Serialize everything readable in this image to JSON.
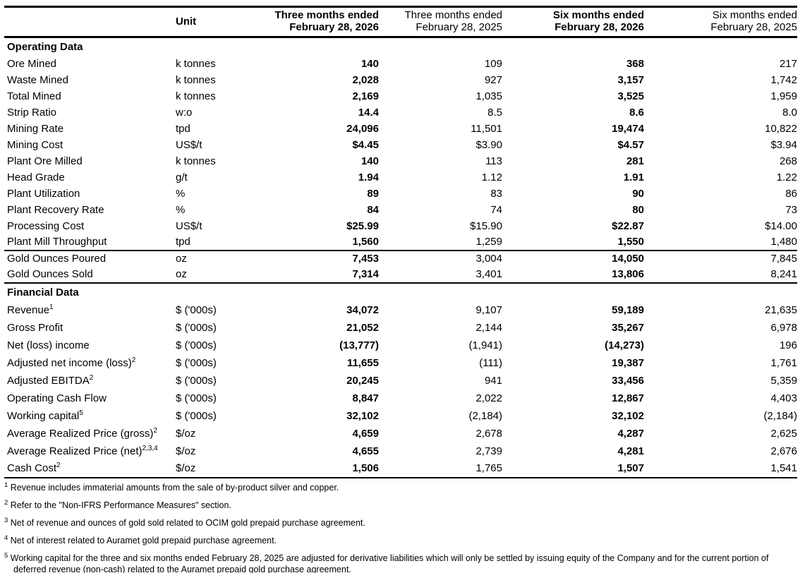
{
  "table": {
    "header": {
      "unit_label": "Unit",
      "columns": [
        {
          "line1": "Three months ended",
          "line2": "February 28, 2026"
        },
        {
          "line1": "Three months ended",
          "line2": "February 28, 2025"
        },
        {
          "line1": "Six months ended",
          "line2": "February 28, 2026"
        },
        {
          "line1": "Six months ended",
          "line2": "February 28, 2025"
        }
      ]
    },
    "sections": [
      {
        "title": "Operating Data",
        "groups": [
          {
            "rows": [
              {
                "label": "Ore Mined",
                "sup": "",
                "unit": "k tonnes",
                "values": [
                  "140",
                  "109",
                  "368",
                  "217"
                ]
              },
              {
                "label": "Waste Mined",
                "sup": "",
                "unit": "k tonnes",
                "values": [
                  "2,028",
                  "927",
                  "3,157",
                  "1,742"
                ]
              },
              {
                "label": "Total Mined",
                "sup": "",
                "unit": "k tonnes",
                "values": [
                  "2,169",
                  "1,035",
                  "3,525",
                  "1,959"
                ]
              },
              {
                "label": "Strip Ratio",
                "sup": "",
                "unit": "w:o",
                "values": [
                  "14.4",
                  "8.5",
                  "8.6",
                  "8.0"
                ]
              },
              {
                "label": "Mining Rate",
                "sup": "",
                "unit": "tpd",
                "values": [
                  "24,096",
                  "11,501",
                  "19,474",
                  "10,822"
                ]
              },
              {
                "label": "Mining Cost",
                "sup": "",
                "unit": "US$/t",
                "values": [
                  "$4.45",
                  "$3.90",
                  "$4.57",
                  "$3.94"
                ]
              },
              {
                "label": "Plant Ore Milled",
                "sup": "",
                "unit": "k tonnes",
                "values": [
                  "140",
                  "113",
                  "281",
                  "268"
                ]
              },
              {
                "label": "Head Grade",
                "sup": "",
                "unit": "g/t",
                "values": [
                  "1.94",
                  "1.12",
                  "1.91",
                  "1.22"
                ]
              },
              {
                "label": "Plant Utilization",
                "sup": "",
                "unit": "%",
                "values": [
                  "89",
                  "83",
                  "90",
                  "86"
                ]
              },
              {
                "label": "Plant Recovery Rate",
                "sup": "",
                "unit": "%",
                "values": [
                  "84",
                  "74",
                  "80",
                  "73"
                ]
              },
              {
                "label": "Processing Cost",
                "sup": "",
                "unit": "US$/t",
                "values": [
                  "$25.99",
                  "$15.90",
                  "$22.87",
                  "$14.00"
                ]
              },
              {
                "label": "Plant Mill Throughput",
                "sup": "",
                "unit": "tpd",
                "values": [
                  "1,560",
                  "1,259",
                  "1,550",
                  "1,480"
                ]
              }
            ]
          },
          {
            "rows": [
              {
                "label": "Gold Ounces Poured",
                "sup": "",
                "unit": "oz",
                "values": [
                  "7,453",
                  "3,004",
                  "14,050",
                  "7,845"
                ]
              },
              {
                "label": "Gold Ounces Sold",
                "sup": "",
                "unit": "oz",
                "values": [
                  "7,314",
                  "3,401",
                  "13,806",
                  "8,241"
                ]
              }
            ]
          }
        ]
      },
      {
        "title": "Financial Data",
        "groups": [
          {
            "rows": [
              {
                "label": "Revenue",
                "sup": "1",
                "unit": "$ ('000s)",
                "values": [
                  "34,072",
                  "9,107",
                  "59,189",
                  "21,635"
                ]
              },
              {
                "label": "Gross Profit",
                "sup": "",
                "unit": "$ ('000s)",
                "values": [
                  "21,052",
                  "2,144",
                  "35,267",
                  "6,978"
                ]
              },
              {
                "label": "Net (loss) income",
                "sup": "",
                "unit": "$ ('000s)",
                "values": [
                  "(13,777)",
                  "(1,941)",
                  "(14,273)",
                  "196"
                ]
              },
              {
                "label": "Adjusted net income (loss)",
                "sup": "2",
                "unit": "$ ('000s)",
                "values": [
                  "11,655",
                  "(111)",
                  "19,387",
                  "1,761"
                ]
              },
              {
                "label": "Adjusted EBITDA",
                "sup": "2",
                "unit": "$ ('000s)",
                "values": [
                  "20,245",
                  "941",
                  "33,456",
                  "5,359"
                ]
              },
              {
                "label": "Operating Cash Flow",
                "sup": "",
                "unit": "$ ('000s)",
                "values": [
                  "8,847",
                  "2,022",
                  "12,867",
                  "4,403"
                ]
              },
              {
                "label": "Working capital",
                "sup": "5",
                "unit": "$ ('000s)",
                "values": [
                  "32,102",
                  "(2,184)",
                  "32,102",
                  "(2,184)"
                ]
              },
              {
                "label": "Average Realized Price (gross)",
                "sup": "2",
                "unit": "$/oz",
                "values": [
                  "4,659",
                  "2,678",
                  "4,287",
                  "2,625"
                ]
              },
              {
                "label": "Average Realized Price (net)",
                "sup": "2,3,4",
                "unit": "$/oz",
                "values": [
                  "4,655",
                  "2,739",
                  "4,281",
                  "2,676"
                ]
              },
              {
                "label": "Cash Cost",
                "sup": "2",
                "unit": "$/oz",
                "values": [
                  "1,506",
                  "1,765",
                  "1,507",
                  "1,541"
                ]
              }
            ]
          }
        ]
      }
    ]
  },
  "footnotes": [
    {
      "num": "1",
      "text": "Revenue includes immaterial amounts from the sale of by-product silver and copper."
    },
    {
      "num": "2",
      "text": "Refer to the \"Non-IFRS Performance Measures\" section."
    },
    {
      "num": "3",
      "text": "Net of revenue and ounces of gold sold related to OCIM gold prepaid purchase agreement."
    },
    {
      "num": "4",
      "text": "Net of interest related to Auramet gold prepaid purchase agreement."
    },
    {
      "num": "5",
      "text": "Working capital for the three and six months ended February 28, 2025 are adjusted for derivative liabilities which will only be settled by issuing equity of the Company and for the current portion of deferred revenue (non-cash) related to the Auramet prepaid gold purchase agreement."
    }
  ],
  "colors": {
    "text": "#000000",
    "background": "#ffffff",
    "rule": "#000000"
  }
}
